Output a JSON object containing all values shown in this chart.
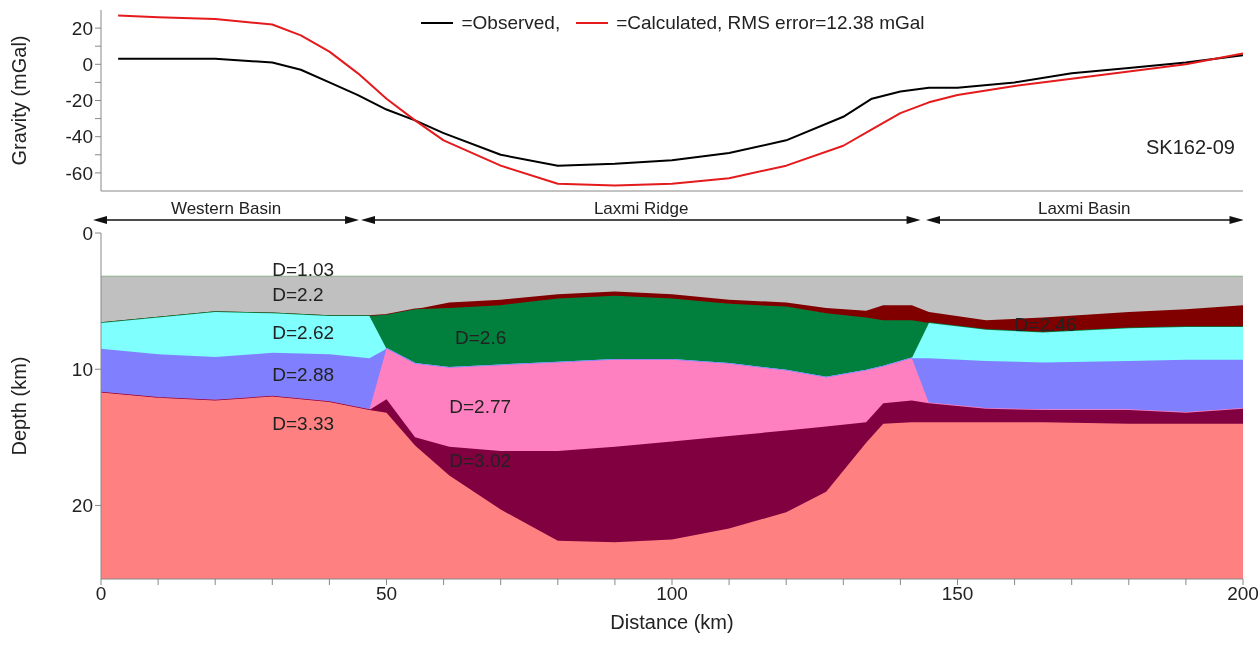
{
  "chart_data": [
    {
      "type": "line",
      "ylabel": "Gravity (mGal)",
      "legend": "top",
      "tick_labels": "y",
      "xlim": [
        0,
        200
      ],
      "ylim": [
        -70,
        30
      ],
      "yticks": [
        -60,
        {
          "value": -50,
          "label": null
        },
        -40,
        {
          "value": -30,
          "label": null
        },
        -20,
        {
          "value": -10,
          "label": null
        },
        0,
        {
          "value": 10,
          "label": null
        },
        20
      ],
      "annotations": [
        "SK162-09"
      ],
      "x": [
        3,
        10,
        20,
        30,
        35,
        40,
        45,
        50,
        55,
        60,
        70,
        80,
        90,
        100,
        110,
        120,
        130,
        135,
        140,
        145,
        150,
        160,
        170,
        180,
        190,
        200
      ],
      "series": [
        {
          "name": "=Observed,",
          "color": "#000000",
          "values": [
            3,
            3,
            3,
            1,
            -3,
            -10,
            -17,
            -25,
            -31,
            -38,
            -50,
            -56,
            -55,
            -53,
            -49,
            -42,
            -29,
            -19,
            -15,
            -13,
            -13,
            -10,
            -5,
            -2,
            1,
            5
          ]
        },
        {
          "name": "=Calculated, RMS error=12.38 mGal",
          "color": "#e41a1c",
          "values": [
            27,
            26,
            25,
            22,
            16,
            7,
            -5,
            -19,
            -31,
            -42,
            -56,
            -66,
            -67,
            -66,
            -63,
            -56,
            -45,
            -36,
            -27,
            -21,
            -17,
            -12,
            -8,
            -4,
            0,
            6
          ]
        }
      ]
    },
    {
      "type": "area",
      "stacked": true,
      "xlabel": "Distance (km)",
      "ylabel": "Depth (km)",
      "xlim": [
        0,
        200
      ],
      "ylim": [
        25.4,
        0
      ],
      "xticks": [
        0,
        {
          "value": 10,
          "label": null
        },
        {
          "value": 20,
          "label": null
        },
        {
          "value": 30,
          "label": null
        },
        {
          "value": 40,
          "label": null
        },
        50,
        {
          "value": 60,
          "label": null
        },
        {
          "value": 70,
          "label": null
        },
        {
          "value": 80,
          "label": null
        },
        {
          "value": 90,
          "label": null
        },
        100,
        {
          "value": 110,
          "label": null
        },
        {
          "value": 120,
          "label": null
        },
        {
          "value": 130,
          "label": null
        },
        {
          "value": 140,
          "label": null
        },
        150,
        {
          "value": 160,
          "label": null
        },
        {
          "value": 170,
          "label": null
        },
        {
          "value": 180,
          "label": null
        },
        {
          "value": 190,
          "label": null
        },
        200
      ],
      "yticks": [
        0,
        10,
        20
      ],
      "annotations": [
        "Western Basin",
        "Laxmi Ridge",
        "Laxmi Basin"
      ],
      "x": [
        0,
        10,
        20,
        30,
        40,
        47,
        50,
        55,
        61,
        70,
        80,
        90,
        100,
        110,
        120,
        127,
        134,
        137,
        142,
        145,
        155,
        165,
        180,
        190,
        200
      ],
      "series": [
        {
          "name": "D=1.03",
          "color": "#ffffff",
          "values": [
            3.2,
            3.2,
            3.2,
            3.2,
            3.2,
            3.2,
            3.2,
            3.2,
            3.2,
            3.2,
            3.2,
            3.2,
            3.2,
            3.2,
            3.2,
            3.2,
            3.2,
            3.2,
            3.2,
            3.2,
            3.2,
            3.2,
            3.2,
            3.2,
            3.2
          ]
        },
        {
          "name": "D=2.2",
          "color": "#c0c0c0",
          "values": [
            3.4,
            3.0,
            2.6,
            2.7,
            2.9,
            2.9,
            2.8,
            2.4,
            1.9,
            1.7,
            1.3,
            1.1,
            1.3,
            1.7,
            1.9,
            2.3,
            2.5,
            2.1,
            2.1,
            2.6,
            3.2,
            3.0,
            2.6,
            2.4,
            2.1
          ]
        },
        {
          "name": "D=2.46",
          "color": "#800000",
          "values": [
            0,
            0,
            0,
            0,
            0,
            0,
            0,
            0,
            0.4,
            0.4,
            0.3,
            0.3,
            0.3,
            0.3,
            0.3,
            0.4,
            0.5,
            1.1,
            1.1,
            0.8,
            0.7,
            1.1,
            1.2,
            1.3,
            1.6
          ]
        },
        {
          "name": "D=2.6",
          "color": "#00803c",
          "values": [
            0,
            0,
            0,
            0,
            0,
            0,
            2.5,
            4.0,
            4.4,
            4.4,
            4.7,
            4.7,
            4.5,
            4.4,
            4.7,
            4.7,
            3.9,
            3.4,
            2.8,
            0,
            0,
            0,
            0,
            0,
            0
          ]
        },
        {
          "name": "D=2.62",
          "color": "#80ffff",
          "values": [
            1.9,
            2.7,
            3.3,
            2.9,
            2.8,
            3.1,
            0,
            0,
            0,
            0,
            0,
            0,
            0,
            0,
            0,
            0,
            0,
            0,
            0,
            2.6,
            2.3,
            2.2,
            2.4,
            2.4,
            2.4
          ]
        },
        {
          "name": "D=2.88",
          "color": "#8080ff",
          "values": [
            3.2,
            3.2,
            3.2,
            3.2,
            3.5,
            3.8,
            0,
            0,
            0,
            0,
            0,
            0,
            0,
            0,
            0,
            0,
            0,
            0,
            0,
            3.3,
            3.5,
            3.5,
            3.6,
            3.9,
            3.6
          ]
        },
        {
          "name": "D=2.77",
          "color": "#ff80c0",
          "values": [
            0,
            0,
            0,
            0,
            0,
            0,
            3.7,
            5.4,
            5.8,
            6.3,
            6.5,
            6.4,
            6.0,
            5.3,
            4.4,
            3.6,
            3.8,
            2.7,
            3.1,
            0,
            0,
            0,
            0,
            0,
            0
          ]
        },
        {
          "name": "D=3.02",
          "color": "#800040",
          "values": [
            0,
            0,
            0,
            0,
            0,
            0,
            1.0,
            0.6,
            2.1,
            4.3,
            6.6,
            7.0,
            7.2,
            6.8,
            6.0,
            4.8,
            1.5,
            1.5,
            1.6,
            1.4,
            1.0,
            0.9,
            1.0,
            0.8,
            1.1
          ]
        },
        {
          "name": "D=3.33",
          "color": "#ff8080",
          "values": [
            13.7,
            13.3,
            13.1,
            13.4,
            13.0,
            12.4,
            12.2,
            9.8,
            7.6,
            5.1,
            2.8,
            2.7,
            2.9,
            3.7,
            4.9,
            6.4,
            10.0,
            11.4,
            11.5,
            11.5,
            11.5,
            11.5,
            11.4,
            11.4,
            11.4
          ]
        }
      ]
    }
  ]
}
